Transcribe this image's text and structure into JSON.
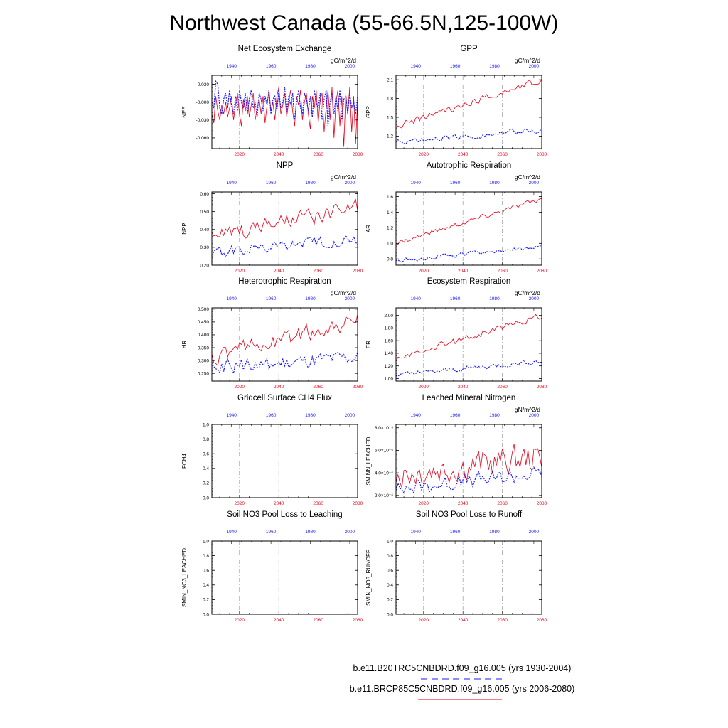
{
  "title": "Northwest Canada (55-66.5N,125-100W)",
  "colors": {
    "future": "#e8001a",
    "historical": "#1a1aff",
    "grid": "#999999"
  },
  "legend": [
    {
      "label": "b.e11.B20TRC5CNBDRD.f09_g16.005 (yrs 1930-2004)",
      "style": "dashed",
      "color": "#1a1aff"
    },
    {
      "label": "b.e11.BRCP85C5CNBDRD.f09_g16.005 (yrs 2006-2080)",
      "style": "solid",
      "color": "#e8001a"
    }
  ],
  "chart_data": [
    {
      "id": "nee",
      "type": "line",
      "title": "Net Ecosystem Exchange",
      "units": "gC/m^2/d",
      "ylabel": "NEE",
      "ylim": [
        -0.078,
        0.045
      ],
      "yticks": [
        0.03,
        -0.0,
        -0.03,
        -0.06
      ],
      "yticklabels": [
        "0.030",
        "-0.000",
        "-0.030",
        "-0.060"
      ],
      "x_bottom": {
        "range": [
          2006,
          2080
        ],
        "ticks": [
          2020,
          2040,
          2060,
          2080
        ],
        "labels": [
          "2020",
          "2040",
          "2060",
          "2080"
        ]
      },
      "x_top": {
        "range": [
          1930,
          2004
        ],
        "ticks": [
          1940,
          1960,
          1980,
          2000
        ],
        "labels": [
          "1940",
          "1960",
          "1980",
          "2000"
        ]
      },
      "gridlines_x": [
        2020,
        2040,
        2060
      ],
      "series": [
        {
          "name": "future",
          "start": 2006,
          "values": [
            -0.02,
            -0.035,
            0.01,
            -0.015,
            -0.03,
            -0.005,
            -0.02,
            0.0,
            -0.025,
            -0.01,
            0.01,
            -0.03,
            -0.005,
            0.015,
            -0.02,
            -0.04,
            0.005,
            -0.015,
            0.01,
            -0.025,
            -0.005,
            0.015,
            -0.03,
            -0.01,
            0.005,
            -0.02,
            0.01,
            -0.035,
            -0.005,
            0.02,
            -0.015,
            0.0,
            -0.03,
            0.01,
            0.025,
            -0.02,
            -0.005,
            0.015,
            -0.025,
            0.0,
            0.02,
            -0.015,
            -0.04,
            0.01,
            -0.005,
            0.02,
            -0.03,
            0.0,
            0.015,
            -0.02,
            -0.045,
            0.01,
            -0.01,
            0.02,
            -0.035,
            0.005,
            0.015,
            -0.05,
            -0.01,
            0.02,
            -0.03,
            0.025,
            -0.06,
            0.0,
            0.02,
            -0.04,
            0.01,
            -0.075,
            0.015,
            -0.02,
            0.025,
            -0.05,
            0.01,
            -0.07,
            0.005
          ]
        },
        {
          "name": "historical",
          "start": 1930,
          "values": [
            0.0,
            -0.01,
            0.035,
            0.03,
            -0.01,
            -0.02,
            0.005,
            0.015,
            -0.01,
            0.02,
            -0.005,
            -0.02,
            0.01,
            -0.015,
            0.02,
            0.0,
            -0.01,
            0.015,
            -0.02,
            0.005,
            0.02,
            -0.01,
            0.0,
            -0.025,
            0.015,
            0.005,
            -0.015,
            0.01,
            -0.005,
            0.02,
            -0.02,
            0.005,
            0.01,
            -0.015,
            0.02,
            -0.01,
            0.0,
            0.025,
            -0.02,
            0.01,
            -0.005,
            0.015,
            -0.03,
            0.0,
            0.02,
            -0.01,
            -0.02,
            0.015,
            0.005,
            -0.015,
            0.01,
            -0.025,
            0.02,
            0.0,
            -0.01,
            0.015,
            -0.03,
            0.005,
            0.02,
            -0.04,
            0.0,
            0.015,
            -0.02,
            0.01,
            -0.015,
            0.02,
            -0.03,
            0.005,
            0.01,
            -0.02,
            0.015,
            -0.01,
            0.0,
            -0.02,
            0.01
          ]
        }
      ]
    },
    {
      "id": "gpp",
      "type": "line",
      "title": "GPP",
      "units": "gC/m^2/d",
      "ylabel": "GPP",
      "ylim": [
        1.0,
        2.17
      ],
      "yticks": [
        1.2,
        1.5,
        1.8,
        2.1
      ],
      "yticklabels": [
        "1.2",
        "1.5",
        "1.8",
        "2.1"
      ],
      "x_bottom": {
        "range": [
          2006,
          2080
        ],
        "ticks": [
          2020,
          2040,
          2060,
          2080
        ],
        "labels": [
          "2020",
          "2040",
          "2060",
          "2080"
        ]
      },
      "x_top": {
        "range": [
          1930,
          2004
        ],
        "ticks": [
          1940,
          1960,
          1980,
          2000
        ],
        "labels": [
          "1940",
          "1960",
          "1980",
          "2000"
        ]
      },
      "gridlines_x": [
        2020,
        2040,
        2060
      ],
      "series": [
        {
          "name": "future",
          "start": 2006,
          "trend": [
            1.35,
            2.1
          ],
          "amp": 0.05
        },
        {
          "name": "historical",
          "start": 1930,
          "trend": [
            1.1,
            1.3
          ],
          "amp": 0.04
        }
      ]
    },
    {
      "id": "npp",
      "type": "line",
      "title": "NPP",
      "units": "gC/m^2/d",
      "ylabel": "NPP",
      "ylim": [
        0.2,
        0.61
      ],
      "yticks": [
        0.2,
        0.3,
        0.4,
        0.5,
        0.6
      ],
      "yticklabels": [
        "0.20",
        "0.30",
        "0.40",
        "0.50",
        "0.60"
      ],
      "x_bottom": {
        "range": [
          2006,
          2080
        ],
        "ticks": [
          2020,
          2040,
          2060,
          2080
        ],
        "labels": [
          "2020",
          "2040",
          "2060",
          "2080"
        ]
      },
      "x_top": {
        "range": [
          1930,
          2004
        ],
        "ticks": [
          1940,
          1960,
          1980,
          2000
        ],
        "labels": [
          "1940",
          "1960",
          "1980",
          "2000"
        ]
      },
      "gridlines_x": [
        2020,
        2040,
        2060
      ],
      "series": [
        {
          "name": "future",
          "start": 2006,
          "trend": [
            0.36,
            0.52
          ],
          "amp": 0.04
        },
        {
          "name": "historical",
          "start": 1930,
          "trend": [
            0.27,
            0.34
          ],
          "amp": 0.03
        }
      ]
    },
    {
      "id": "ar",
      "type": "line",
      "title": "Autotrophic Respiration",
      "units": "gC/m^2/d",
      "ylabel": "AR",
      "ylim": [
        0.72,
        1.66
      ],
      "yticks": [
        0.8,
        1.0,
        1.2,
        1.4,
        1.6
      ],
      "yticklabels": [
        "0.8",
        "1.0",
        "1.2",
        "1.4",
        "1.6"
      ],
      "x_bottom": {
        "range": [
          2006,
          2080
        ],
        "ticks": [
          2020,
          2040,
          2060,
          2080
        ],
        "labels": [
          "2020",
          "2040",
          "2060",
          "2080"
        ]
      },
      "x_top": {
        "range": [
          1930,
          2004
        ],
        "ticks": [
          1940,
          1960,
          1980,
          2000
        ],
        "labels": [
          "1940",
          "1960",
          "1980",
          "2000"
        ]
      },
      "gridlines_x": [
        2020,
        2040,
        2060
      ],
      "series": [
        {
          "name": "future",
          "start": 2006,
          "trend": [
            1.0,
            1.57
          ],
          "amp": 0.03
        },
        {
          "name": "historical",
          "start": 1930,
          "trend": [
            0.78,
            0.95
          ],
          "amp": 0.025
        }
      ]
    },
    {
      "id": "hr",
      "type": "line",
      "title": "Heterotrophic Respiration",
      "units": "gC/m^2/d",
      "ylabel": "HR",
      "ylim": [
        0.22,
        0.505
      ],
      "yticks": [
        0.25,
        0.3,
        0.35,
        0.4,
        0.45,
        0.5
      ],
      "yticklabels": [
        "0.250",
        "0.300",
        "0.350",
        "0.400",
        "0.450",
        "0.500"
      ],
      "x_bottom": {
        "range": [
          2006,
          2080
        ],
        "ticks": [
          2020,
          2040,
          2060,
          2080
        ],
        "labels": [
          "2020",
          "2040",
          "2060",
          "2080"
        ]
      },
      "x_top": {
        "range": [
          1930,
          2004
        ],
        "ticks": [
          1940,
          1960,
          1980,
          2000
        ],
        "labels": [
          "1940",
          "1960",
          "1980",
          "2000"
        ]
      },
      "gridlines_x": [
        2020,
        2040,
        2060
      ],
      "series": [
        {
          "name": "future",
          "start": 2006,
          "trend": [
            0.31,
            0.46
          ],
          "amp": 0.03
        },
        {
          "name": "historical",
          "start": 1930,
          "trend": [
            0.27,
            0.31
          ],
          "amp": 0.025
        }
      ]
    },
    {
      "id": "er",
      "type": "line",
      "title": "Ecosystem Respiration",
      "units": "gC/m^2/d",
      "ylabel": "ER",
      "ylim": [
        0.96,
        2.12
      ],
      "yticks": [
        1.0,
        1.2,
        1.4,
        1.6,
        1.8,
        2.0
      ],
      "yticklabels": [
        "1.00",
        "1.20",
        "1.40",
        "1.60",
        "1.80",
        "2.00"
      ],
      "x_bottom": {
        "range": [
          2006,
          2080
        ],
        "ticks": [
          2020,
          2040,
          2060,
          2080
        ],
        "labels": [
          "2020",
          "2040",
          "2060",
          "2080"
        ]
      },
      "x_top": {
        "range": [
          1930,
          2004
        ],
        "ticks": [
          1940,
          1960,
          1980,
          2000
        ],
        "labels": [
          "1940",
          "1960",
          "1980",
          "2000"
        ]
      },
      "gridlines_x": [
        2020,
        2040,
        2060
      ],
      "series": [
        {
          "name": "future",
          "start": 2006,
          "trend": [
            1.3,
            2.0
          ],
          "amp": 0.05
        },
        {
          "name": "historical",
          "start": 1930,
          "trend": [
            1.05,
            1.28
          ],
          "amp": 0.035
        }
      ]
    },
    {
      "id": "fch4",
      "type": "line",
      "title": "Gridcell Surface CH4 Flux",
      "units": "",
      "ylabel": "FCH4",
      "ylim": [
        0.0,
        1.0
      ],
      "yticks": [
        0.0,
        0.2,
        0.4,
        0.6,
        0.8,
        1.0
      ],
      "yticklabels": [
        "0.0",
        "0.2",
        "0.4",
        "0.6",
        "0.8",
        "1.0"
      ],
      "x_bottom": {
        "range": [
          2006,
          2080
        ],
        "ticks": [
          2020,
          2040,
          2060,
          2080
        ],
        "labels": [
          "2020",
          "2040",
          "2060",
          "2080"
        ]
      },
      "x_top": {
        "range": [
          1930,
          2004
        ],
        "ticks": [
          1940,
          1960,
          1980,
          2000
        ],
        "labels": [
          "1940",
          "1960",
          "1980",
          "2000"
        ]
      },
      "gridlines_x": [
        2020,
        2040,
        2060
      ],
      "series": []
    },
    {
      "id": "sminn",
      "type": "line",
      "title": "Leached Mineral Nitrogen",
      "units": "gN/m^2/d",
      "ylabel": "SMINN_LEACHED",
      "ylim": [
        1.8,
        8.3
      ],
      "yticks": [
        2.0,
        4.0,
        6.0,
        8.0
      ],
      "yticklabels": [
        "2.0×10⁻⁶",
        "4.0×10⁻⁶",
        "6.0×10⁻⁶",
        "8.0×10⁻⁶"
      ],
      "x_bottom": {
        "range": [
          2006,
          2080
        ],
        "ticks": [
          2020,
          2040,
          2060,
          2080
        ],
        "labels": [
          "2020",
          "2040",
          "2060",
          "2080"
        ]
      },
      "x_top": {
        "range": [
          1930,
          2004
        ],
        "ticks": [
          1940,
          1960,
          1980,
          2000
        ],
        "labels": [
          "1940",
          "1960",
          "1980",
          "2000"
        ]
      },
      "gridlines_x": [
        2020,
        2040,
        2060
      ],
      "series": [
        {
          "name": "future",
          "start": 2006,
          "trend": [
            4.0,
            5.5
          ],
          "amp": 1.2
        },
        {
          "name": "historical",
          "start": 1930,
          "trend": [
            2.6,
            4.0
          ],
          "amp": 0.6
        }
      ]
    },
    {
      "id": "no3leach",
      "type": "line",
      "title": "Soil NO3 Pool Loss to Leaching",
      "units": "",
      "ylabel": "SMIN_NO3_LEACHED",
      "ylim": [
        0.0,
        1.0
      ],
      "yticks": [
        0.0,
        0.2,
        0.4,
        0.6,
        0.8,
        1.0
      ],
      "yticklabels": [
        "0.0",
        "0.2",
        "0.4",
        "0.6",
        "0.8",
        "1.0"
      ],
      "x_bottom": {
        "range": [
          2006,
          2080
        ],
        "ticks": [
          2020,
          2040,
          2060,
          2080
        ],
        "labels": [
          "2020",
          "2040",
          "2060",
          "2080"
        ]
      },
      "x_top": {
        "range": [
          1930,
          2004
        ],
        "ticks": [
          1940,
          1960,
          1980,
          2000
        ],
        "labels": [
          "1940",
          "1960",
          "1980",
          "2000"
        ]
      },
      "gridlines_x": [
        2020,
        2040,
        2060
      ],
      "series": []
    },
    {
      "id": "no3runoff",
      "type": "line",
      "title": "Soil NO3 Pool Loss to Runoff",
      "units": "",
      "ylabel": "SMIN_NO3_RUNOFF",
      "ylim": [
        0.0,
        1.0
      ],
      "yticks": [
        0.0,
        0.2,
        0.4,
        0.6,
        0.8,
        1.0
      ],
      "yticklabels": [
        "0.0",
        "0.2",
        "0.4",
        "0.6",
        "0.8",
        "1.0"
      ],
      "x_bottom": {
        "range": [
          2006,
          2080
        ],
        "ticks": [
          2020,
          2040,
          2060,
          2080
        ],
        "labels": [
          "2020",
          "2040",
          "2060",
          "2080"
        ]
      },
      "x_top": {
        "range": [
          1930,
          2004
        ],
        "ticks": [
          1940,
          1960,
          1980,
          2000
        ],
        "labels": [
          "1940",
          "1960",
          "1980",
          "2000"
        ]
      },
      "gridlines_x": [
        2020,
        2040,
        2060
      ],
      "series": []
    }
  ]
}
